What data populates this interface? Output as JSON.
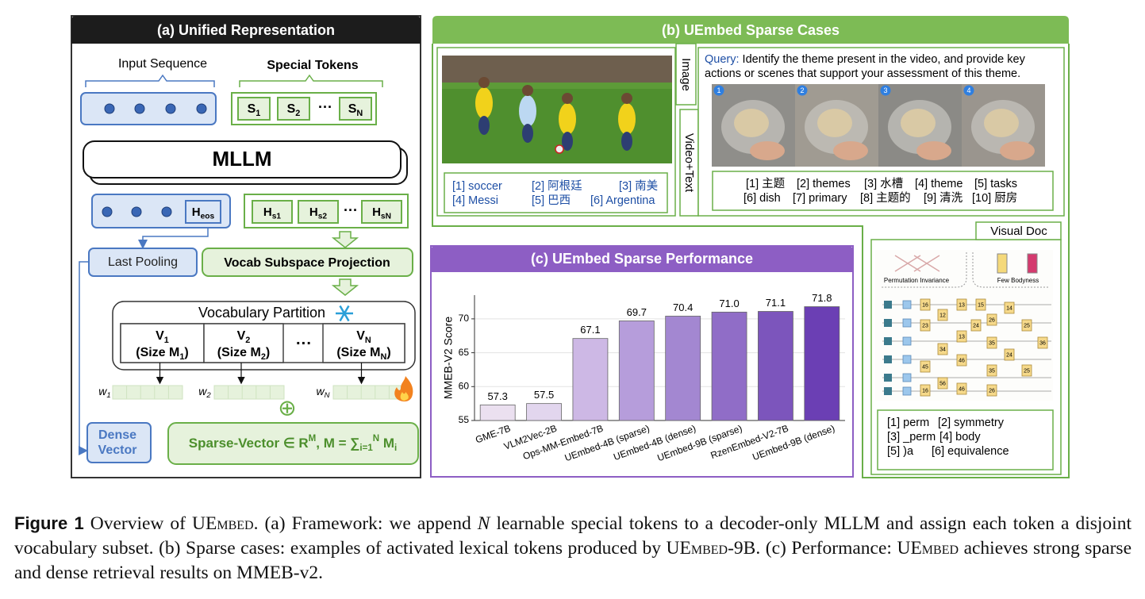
{
  "panel_a": {
    "title": "(a) Unified Representation",
    "input_sequence": "Input Sequence",
    "special_tokens": "Special Tokens",
    "ellipsis": "···",
    "special_token_labels": [
      [
        "S",
        {
          "sub": "1"
        }
      ],
      [
        "S",
        {
          "sub": "2"
        }
      ],
      [
        "S",
        {
          "sub": "N"
        }
      ]
    ],
    "mllm": "MLLM",
    "eos_token": [
      "H",
      {
        "sub": "eos"
      }
    ],
    "hidden_tokens": [
      [
        "H",
        {
          "sub": "s1"
        }
      ],
      [
        "H",
        {
          "sub": "s2"
        }
      ],
      [
        "H",
        {
          "sub": "sN"
        }
      ]
    ],
    "last_pooling": "Last Pooling",
    "projection": "Vocab Subspace Projection",
    "partition_title": "Vocabulary Partition",
    "partitions": [
      {
        "name": [
          "V",
          {
            "sub": "1"
          }
        ],
        "size": [
          "(Size M",
          {
            "sub": "1"
          },
          ")"
        ]
      },
      {
        "name": [
          "V",
          {
            "sub": "2"
          }
        ],
        "size": [
          "(Size M",
          {
            "sub": "2"
          },
          ")"
        ]
      },
      {
        "name": [
          "V",
          {
            "sub": "N"
          }
        ],
        "size": [
          "(Size M",
          {
            "sub": "N"
          },
          ")"
        ]
      }
    ],
    "weights": [
      [
        "w",
        {
          "sub": "1"
        }
      ],
      [
        "w",
        {
          "sub": "2"
        }
      ],
      [
        "w",
        {
          "sub": "N"
        }
      ]
    ],
    "plus": "⊕",
    "dense_vector": [
      "Dense",
      "Vector"
    ],
    "sparse_vector": [
      "Sparse-Vector ∈ ",
      "R",
      {
        "sup": "M"
      },
      ", M = ",
      "∑",
      {
        "sub": "i=1"
      },
      {
        "sup": "N"
      },
      " M",
      {
        "sub": "i"
      }
    ]
  },
  "panel_b": {
    "title": "(b) UEmbed Sparse Cases",
    "image_tab": "Image",
    "video_tab": "Video+Text",
    "image_tokens": [
      "[1] soccer",
      "[2] 阿根廷",
      "[3] 南美",
      "[4] Messi",
      "[5] 巴西",
      "[6] Argentina"
    ],
    "query_label": "Query:",
    "query_lines": [
      " Identify the theme present in the video, and provide key",
      "actions or scenes that support your assessment of this theme."
    ],
    "frame_numbers": [
      1,
      2,
      3,
      4
    ],
    "video_tokens": [
      "[1] 主题",
      "[2] themes",
      "[3] 水槽",
      "[4] theme",
      "[5] tasks",
      "[6] dish",
      "[7] primary",
      "[8] 主题的",
      "[9] 清洗",
      "[10] 厨房"
    ]
  },
  "visual_doc": {
    "title": "Visual Doc",
    "figure_labels": [
      "Permutation Invariance",
      "Few Bodyness"
    ],
    "diagram_numbers": [
      16,
      12,
      13,
      15,
      14,
      23,
      13,
      24,
      26,
      25,
      34,
      35,
      36,
      46,
      24,
      45,
      35,
      25,
      56,
      46,
      16,
      26
    ],
    "tokens": [
      "[1] perm",
      "[2] symmetry",
      "[3] _perm",
      "[4] body",
      "[5] )a",
      "[6] equivalence"
    ]
  },
  "chart_data": {
    "type": "bar",
    "title": "(c) UEmbed Sparse Performance",
    "y_label": "MMEB-V2 Score",
    "categories": [
      "GME-7B",
      "VLM2Vec-2B",
      "Ops-MM-Embed-7B",
      "UEmbed-4B (sparse)",
      "UEmbed-4B (dense)",
      "UEmbed-9B (sparse)",
      "RzenEmbed-V2-7B",
      "UEmbed-9B (dense)"
    ],
    "values": [
      57.3,
      57.5,
      67.1,
      69.7,
      70.4,
      71.0,
      71.1,
      71.8
    ],
    "value_labels": [
      "57.3",
      "57.5",
      "67.1",
      "69.7",
      "70.4",
      "71.0",
      "71.1",
      "71.8"
    ],
    "colors": [
      "#ebe0f0",
      "#e2d6ee",
      "#cdb8e5",
      "#b69ddb",
      "#a387d1",
      "#906dc7",
      "#7c55bc",
      "#6b3fb4"
    ],
    "ylim": [
      55,
      73.5
    ],
    "yticks": [
      55,
      60,
      65,
      70
    ],
    "grid": true
  },
  "caption": {
    "label": "Figure 1",
    "segments": [
      " Overview of ",
      {
        "sc": "UEmbed"
      },
      ". (a) Framework: we append ",
      {
        "it": "N"
      },
      " learnable special tokens to a decoder-only MLLM and assign each token a disjoint vocabulary subset. (b) Sparse cases: examples of activated lexical tokens produced by ",
      {
        "sc": "UEmbed"
      },
      "-9B. (c) Performance: ",
      {
        "sc": "UEmbed"
      },
      " achieves strong sparse and dense retrieval results on MMEB-v2."
    ]
  }
}
